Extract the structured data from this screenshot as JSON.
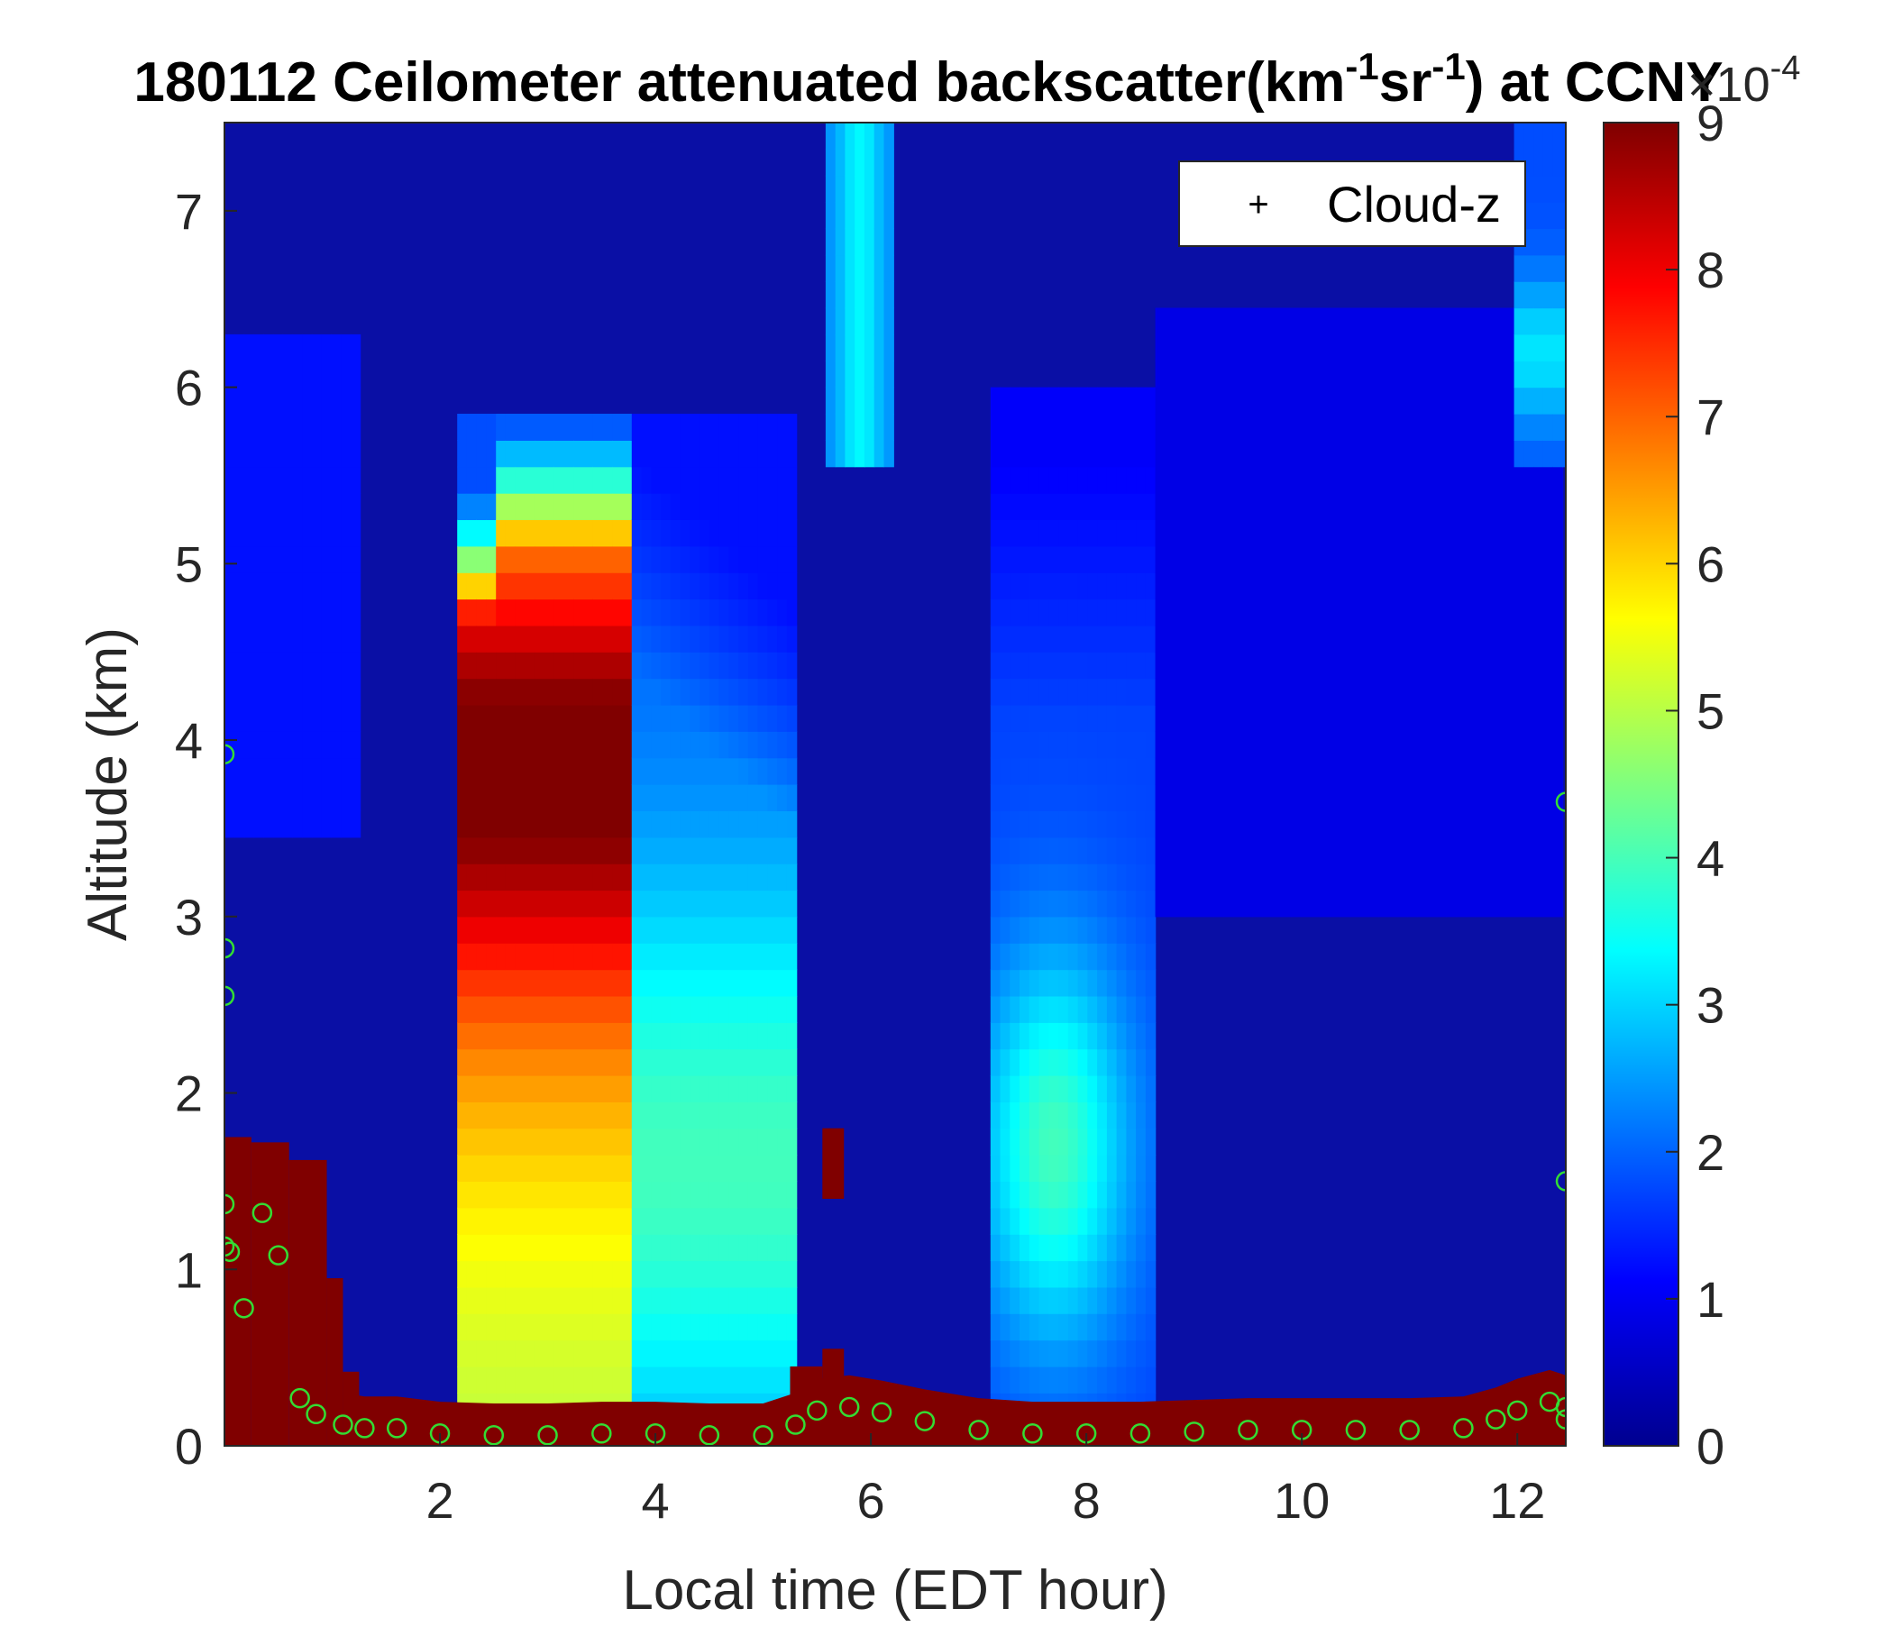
{
  "chart_data": {
    "type": "heatmap",
    "title_parts": {
      "prefix": "180112 Ceilometer attenuated backscatter(km",
      "sup1": "-1",
      "mid": "sr",
      "sup2": "-1",
      "suffix": ") at CCNY"
    },
    "xlabel": "Local time (EDT hour)",
    "ylabel": "Altitude (km)",
    "xlim": [
      0.0,
      12.45
    ],
    "ylim": [
      0,
      7.5
    ],
    "xticks": [
      2,
      4,
      6,
      8,
      10,
      12
    ],
    "yticks": [
      0,
      1,
      2,
      3,
      4,
      5,
      6,
      7
    ],
    "colormap": "jet",
    "colorbar": {
      "range": [
        0,
        9
      ],
      "ticks": [
        0,
        1,
        2,
        3,
        4,
        5,
        6,
        7,
        8,
        9
      ],
      "exponent_base": "×10",
      "exponent_power": "-4"
    },
    "legend": {
      "location": "top-right",
      "entries": [
        {
          "marker": "+",
          "label": "Cloud-z",
          "color": "#000000"
        }
      ]
    },
    "aerosol_layer_marker_color": "#33dd33",
    "cloud_bases_low": [
      {
        "x0": 0.0,
        "x1": 0.25,
        "bottom": 0.0,
        "top": 1.75
      },
      {
        "x0": 0.25,
        "x1": 0.6,
        "bottom": 0.0,
        "top": 1.72
      },
      {
        "x0": 0.6,
        "x1": 0.95,
        "bottom": 0.0,
        "top": 1.62
      },
      {
        "x0": 0.95,
        "x1": 1.1,
        "bottom": 0.0,
        "top": 0.95
      },
      {
        "x0": 1.1,
        "x1": 1.25,
        "bottom": 0.0,
        "top": 0.42
      },
      {
        "x0": 5.25,
        "x1": 5.55,
        "bottom": 0.0,
        "top": 0.45
      },
      {
        "x0": 5.55,
        "x1": 5.75,
        "bottom": 0.0,
        "top": 0.55
      },
      {
        "x0": 5.55,
        "x1": 5.75,
        "bottom": 1.4,
        "top": 1.8
      }
    ],
    "aerosol_layer_top": [
      [
        1.1,
        0.12
      ],
      [
        1.3,
        0.1
      ],
      [
        1.6,
        0.1
      ],
      [
        2.0,
        0.07
      ],
      [
        2.5,
        0.06
      ],
      [
        3.0,
        0.06
      ],
      [
        3.5,
        0.07
      ],
      [
        4.0,
        0.07
      ],
      [
        4.5,
        0.06
      ],
      [
        5.0,
        0.06
      ],
      [
        5.3,
        0.12
      ],
      [
        5.5,
        0.2
      ],
      [
        5.8,
        0.22
      ],
      [
        6.1,
        0.19
      ],
      [
        6.5,
        0.14
      ],
      [
        7.0,
        0.09
      ],
      [
        7.5,
        0.07
      ],
      [
        8.0,
        0.07
      ],
      [
        8.5,
        0.07
      ],
      [
        9.0,
        0.08
      ],
      [
        9.5,
        0.09
      ],
      [
        10.0,
        0.09
      ],
      [
        10.5,
        0.09
      ],
      [
        11.0,
        0.09
      ],
      [
        11.5,
        0.1
      ],
      [
        11.8,
        0.15
      ],
      [
        12.0,
        0.2
      ],
      [
        12.3,
        0.25
      ],
      [
        12.45,
        0.22
      ]
    ],
    "aerosol_layer_extra": [
      [
        0.0,
        3.92
      ],
      [
        0.0,
        2.82
      ],
      [
        0.0,
        2.55
      ],
      [
        0.0,
        1.37
      ],
      [
        0.0,
        1.13
      ],
      [
        0.05,
        1.1
      ],
      [
        0.18,
        0.78
      ],
      [
        0.35,
        1.32
      ],
      [
        0.5,
        1.08
      ],
      [
        0.7,
        0.27
      ],
      [
        0.85,
        0.18
      ],
      [
        12.45,
        3.65
      ],
      [
        12.45,
        1.5
      ],
      [
        12.45,
        0.15
      ]
    ]
  }
}
